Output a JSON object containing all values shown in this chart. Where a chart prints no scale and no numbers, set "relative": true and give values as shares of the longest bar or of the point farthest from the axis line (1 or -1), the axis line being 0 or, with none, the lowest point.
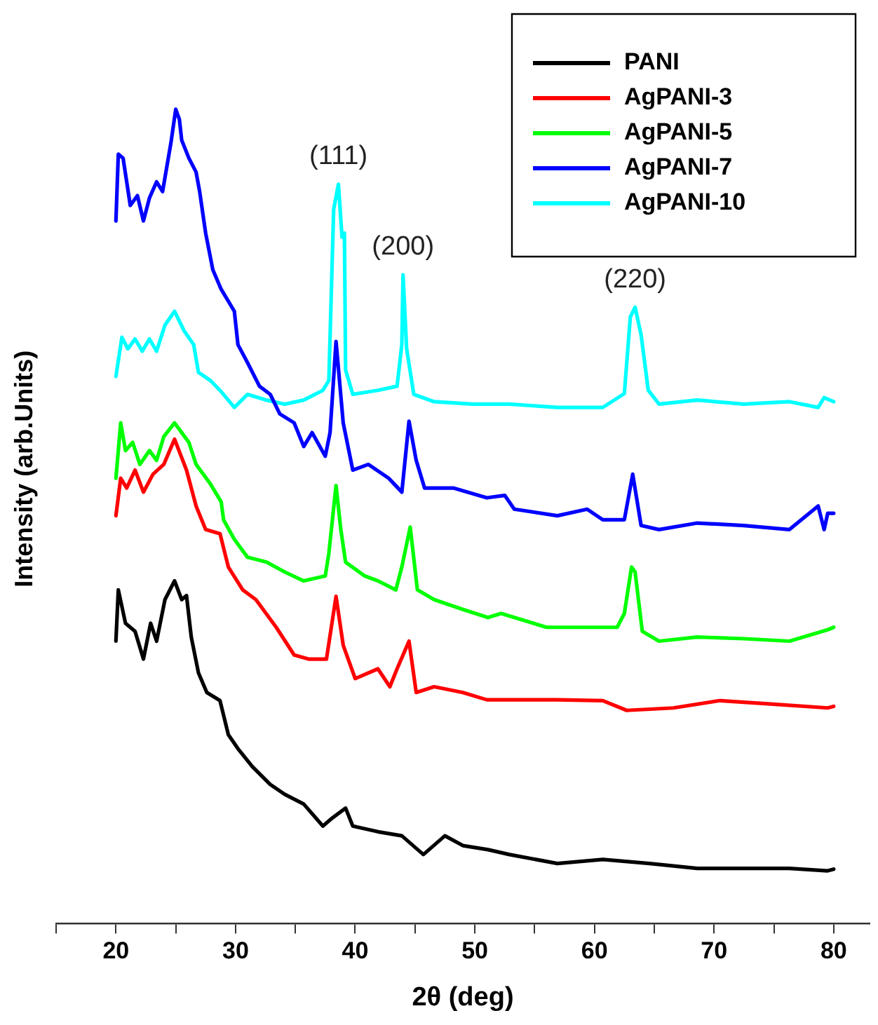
{
  "chart_data": {
    "type": "line",
    "xlabel": "2θ (deg)",
    "ylabel": "Intensity (arb.Units)",
    "relative": true,
    "tick_labels": "x",
    "legend": "top right",
    "xlim": [
      15,
      83
    ],
    "xticks": [
      {
        "value": 15,
        "label": null
      },
      20,
      {
        "value": 25,
        "label": null
      },
      30,
      {
        "value": 35,
        "label": null
      },
      40,
      {
        "value": 45,
        "label": null
      },
      50,
      {
        "value": 55,
        "label": null
      },
      60,
      {
        "value": 65,
        "label": null
      },
      70,
      {
        "value": 75,
        "label": null
      },
      80
    ],
    "annotations": [
      {
        "text": "(111)",
        "x": 38.6,
        "y": 0.908
      },
      {
        "text": "(200)",
        "x": 44.0,
        "y": 0.797
      },
      {
        "text": "(220)",
        "x": 63.4,
        "y": 0.757
      }
    ],
    "series": [
      {
        "name": "PANI",
        "color": "#000000",
        "x": [
          20,
          20.2,
          20.8,
          21.6,
          22.3,
          22.9,
          23.4,
          24.1,
          24.9,
          25.5,
          25.9,
          26.3,
          26.9,
          27.6,
          28.7,
          29.4,
          30.2,
          31.4,
          32.9,
          34.1,
          35.7,
          37.3,
          38.1,
          39.2,
          39.8,
          41.9,
          43.9,
          45.7,
          47.5,
          49.0,
          51.1,
          52.9,
          56.9,
          60.7,
          64.6,
          68.6,
          72.5,
          76.3,
          79.5,
          80
        ],
        "values": [
          0.347,
          0.41,
          0.369,
          0.359,
          0.325,
          0.369,
          0.347,
          0.398,
          0.421,
          0.398,
          0.403,
          0.352,
          0.308,
          0.284,
          0.274,
          0.232,
          0.215,
          0.193,
          0.171,
          0.159,
          0.147,
          0.12,
          0.13,
          0.142,
          0.12,
          0.113,
          0.108,
          0.085,
          0.108,
          0.096,
          0.091,
          0.085,
          0.074,
          0.079,
          0.074,
          0.068,
          0.068,
          0.068,
          0.065,
          0.067
        ]
      },
      {
        "name": "AgPANI-3",
        "color": "#ff0000",
        "x": [
          20,
          20.4,
          20.9,
          21.6,
          22.3,
          23.1,
          24,
          24.9,
          25.9,
          26.7,
          27.5,
          28.7,
          29.4,
          30.6,
          31.7,
          33.4,
          34.9,
          36.1,
          37.6,
          38.4,
          39.0,
          40.0,
          41.9,
          42.9,
          43.5,
          44.5,
          45.1,
          46.6,
          49.0,
          51.0,
          52.9,
          56.9,
          60.7,
          62.7,
          66.6,
          70.5,
          74.5,
          79.5,
          80
        ],
        "values": [
          0.501,
          0.547,
          0.535,
          0.557,
          0.53,
          0.552,
          0.564,
          0.595,
          0.557,
          0.513,
          0.484,
          0.479,
          0.438,
          0.41,
          0.398,
          0.364,
          0.33,
          0.325,
          0.325,
          0.402,
          0.342,
          0.301,
          0.313,
          0.291,
          0.313,
          0.347,
          0.284,
          0.291,
          0.284,
          0.275,
          0.275,
          0.275,
          0.274,
          0.262,
          0.265,
          0.274,
          0.27,
          0.265,
          0.267
        ]
      },
      {
        "name": "AgPANI-5",
        "color": "#00ff00",
        "x": [
          20,
          20.4,
          20.8,
          21.4,
          22,
          22.8,
          23.4,
          24,
          24.9,
          25.5,
          26.1,
          26.7,
          27.9,
          28.8,
          29.0,
          29.9,
          31.0,
          32.6,
          34.1,
          35.7,
          37.5,
          37.8,
          38.4,
          38.8,
          39.2,
          40.8,
          41.9,
          43.4,
          43.9,
          44.6,
          45.2,
          46.6,
          49.0,
          51.1,
          52.2,
          56.0,
          58.4,
          61.9,
          62.5,
          63.1,
          63.4,
          64.0,
          65.4,
          68.6,
          72.5,
          76.3,
          79.5,
          80
        ],
        "values": [
          0.547,
          0.615,
          0.581,
          0.591,
          0.564,
          0.581,
          0.569,
          0.598,
          0.615,
          0.603,
          0.591,
          0.564,
          0.54,
          0.518,
          0.496,
          0.472,
          0.45,
          0.444,
          0.432,
          0.421,
          0.427,
          0.455,
          0.538,
          0.484,
          0.444,
          0.427,
          0.421,
          0.41,
          0.438,
          0.487,
          0.41,
          0.398,
          0.386,
          0.376,
          0.381,
          0.364,
          0.364,
          0.364,
          0.381,
          0.438,
          0.432,
          0.359,
          0.347,
          0.352,
          0.35,
          0.347,
          0.361,
          0.364
        ]
      },
      {
        "name": "AgPANI-7",
        "color": "#0000ff",
        "x": [
          20,
          20.2,
          20.6,
          21.2,
          21.8,
          22.3,
          22.8,
          23.4,
          23.9,
          24.6,
          25.0,
          25.3,
          25.5,
          26.1,
          26.7,
          27.0,
          27.5,
          28.1,
          28.8,
          29.9,
          30.2,
          31.0,
          32.0,
          32.9,
          33.7,
          34.9,
          35.7,
          36.4,
          37.5,
          37.9,
          38.4,
          39.0,
          39.8,
          41.1,
          42.8,
          43.9,
          44.5,
          45.1,
          45.8,
          48.2,
          51.0,
          52.5,
          53.3,
          56.9,
          59.4,
          60.7,
          62.5,
          63.2,
          63.9,
          65.4,
          68.6,
          72.5,
          76.3,
          78.7,
          79.2,
          79.5,
          80
        ],
        "values": [
          0.863,
          0.945,
          0.94,
          0.882,
          0.894,
          0.863,
          0.891,
          0.911,
          0.899,
          0.959,
          1,
          0.988,
          0.962,
          0.94,
          0.923,
          0.899,
          0.848,
          0.803,
          0.779,
          0.752,
          0.711,
          0.689,
          0.66,
          0.65,
          0.626,
          0.615,
          0.586,
          0.603,
          0.574,
          0.603,
          0.715,
          0.615,
          0.557,
          0.564,
          0.547,
          0.53,
          0.617,
          0.569,
          0.535,
          0.535,
          0.523,
          0.526,
          0.509,
          0.501,
          0.509,
          0.496,
          0.496,
          0.552,
          0.489,
          0.484,
          0.492,
          0.489,
          0.484,
          0.513,
          0.484,
          0.504,
          0.504
        ]
      },
      {
        "name": "AgPANI-10",
        "color": "#00ffff",
        "x": [
          20,
          20.5,
          21,
          21.6,
          22.2,
          22.8,
          23.4,
          24.1,
          24.9,
          25.7,
          26.5,
          26.9,
          27.9,
          28.7,
          29.9,
          31.0,
          32.6,
          34.1,
          35.7,
          37.3,
          37.8,
          38.2,
          38.6,
          38.9,
          39.1,
          39.2,
          39.8,
          41.9,
          43.5,
          43.9,
          44.0,
          44.3,
          44.9,
          46.6,
          49.8,
          52.9,
          56.9,
          60.7,
          62.5,
          63.0,
          63.4,
          63.9,
          64.5,
          65.4,
          68.6,
          72.5,
          76.3,
          78.7,
          79.2,
          80
        ],
        "values": [
          0.672,
          0.72,
          0.706,
          0.718,
          0.703,
          0.718,
          0.703,
          0.735,
          0.752,
          0.728,
          0.711,
          0.677,
          0.667,
          0.655,
          0.634,
          0.65,
          0.643,
          0.638,
          0.643,
          0.655,
          0.667,
          0.877,
          0.908,
          0.843,
          0.848,
          0.68,
          0.65,
          0.655,
          0.66,
          0.711,
          0.797,
          0.706,
          0.65,
          0.641,
          0.638,
          0.638,
          0.634,
          0.634,
          0.651,
          0.745,
          0.757,
          0.723,
          0.655,
          0.638,
          0.643,
          0.638,
          0.641,
          0.634,
          0.646,
          0.641
        ]
      }
    ]
  }
}
